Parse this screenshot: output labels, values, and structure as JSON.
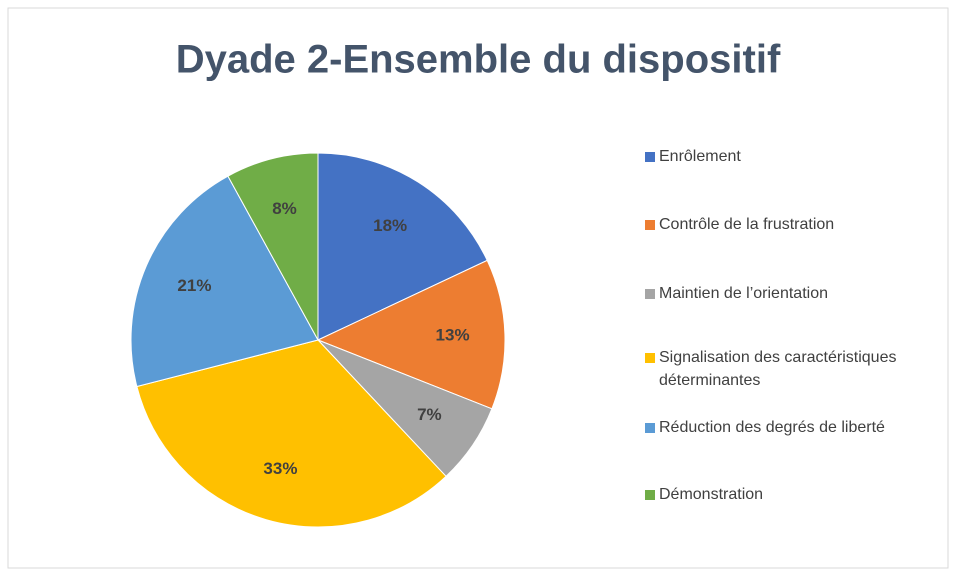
{
  "chart_data": {
    "type": "pie",
    "title": "Dyade 2-Ensemble du dispositif",
    "categories": [
      "Enrôlement",
      "Contrôle de la frustration",
      "Maintien de l’orientation",
      "Signalisation des caractéristiques déterminantes",
      "Réduction des degrés de liberté",
      "Démonstration"
    ],
    "values": [
      18,
      13,
      7,
      33,
      21,
      8
    ],
    "value_labels": [
      "18%",
      "13%",
      "7%",
      "33%",
      "21%",
      "8%"
    ],
    "colors": [
      "#4472c4",
      "#ed7d31",
      "#a5a5a5",
      "#ffc000",
      "#5b9bd5",
      "#70ad47"
    ],
    "legend": "right"
  }
}
